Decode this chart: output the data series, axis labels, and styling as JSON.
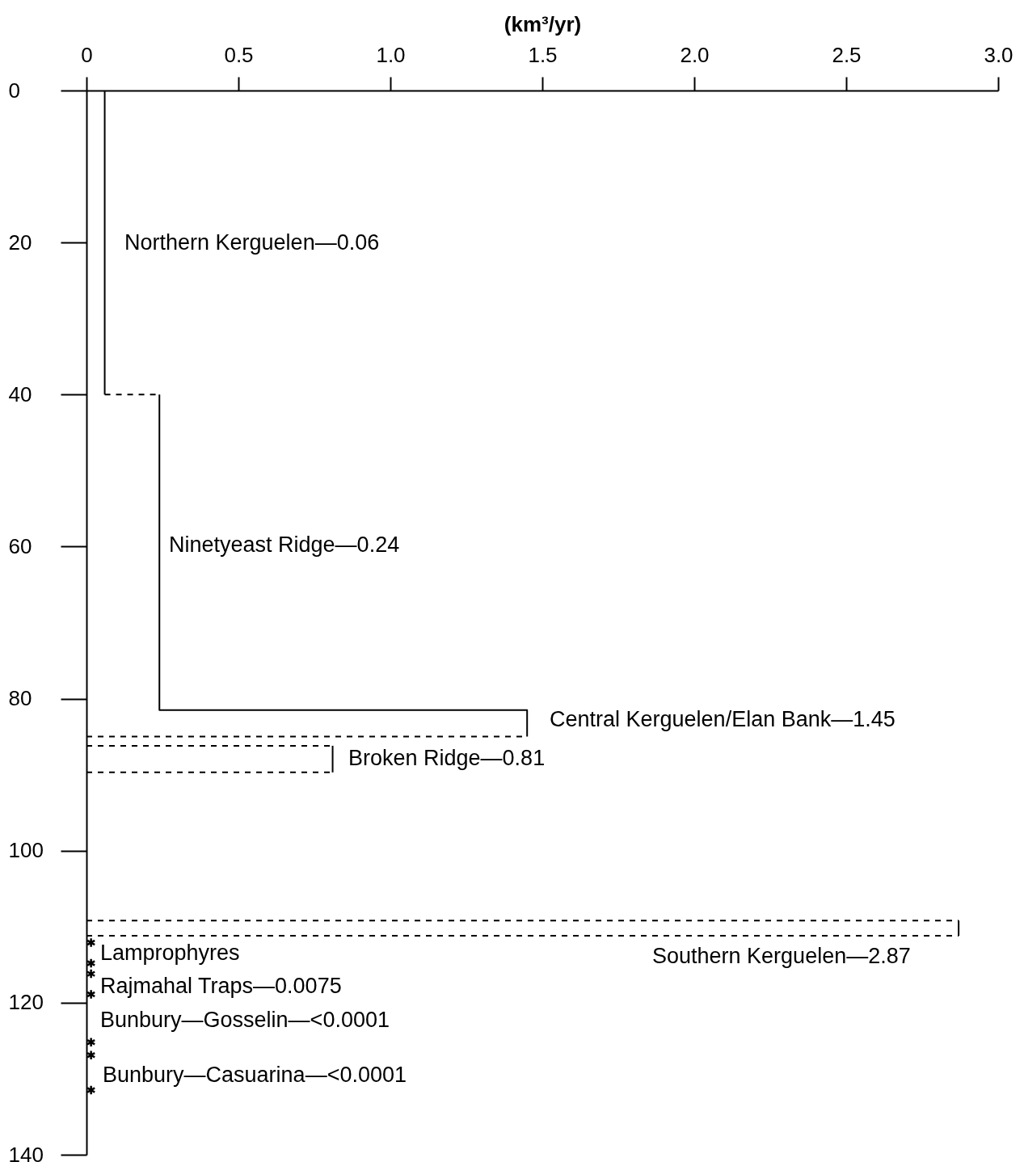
{
  "chart_data": {
    "type": "line",
    "xlabel": "(km³/yr)",
    "xlim": [
      0,
      3
    ],
    "xticks": [
      0,
      0.5,
      {
        "value": 1,
        "label": "1.0"
      },
      1.5,
      {
        "value": 2,
        "label": "2.0"
      },
      2.5,
      {
        "value": 3,
        "label": "3.0"
      }
    ],
    "ylim": [
      140,
      0
    ],
    "yticks": [
      0,
      20,
      40,
      60,
      80,
      100,
      120,
      140
    ],
    "series": [
      {
        "color": "#000000",
        "line_style": "solid",
        "x": [
          0.06,
          0.06
        ],
        "values": [
          0,
          40
        ]
      },
      {
        "color": "#000000",
        "line_style": "dashed",
        "x": [
          0.06,
          0.24
        ],
        "values": [
          40,
          40
        ]
      },
      {
        "color": "#000000",
        "line_style": "solid",
        "x": [
          0.24,
          0.24,
          1.45,
          1.45
        ],
        "values": [
          40,
          81.5,
          81.5,
          85
        ]
      },
      {
        "color": "#000000",
        "line_style": "dashed",
        "x": [
          0,
          1.45
        ],
        "values": [
          85,
          85
        ]
      },
      {
        "color": "#000000",
        "line_style": "dashed",
        "x": [
          0,
          0.81
        ],
        "values": [
          86.2,
          86.2
        ]
      },
      {
        "color": "#000000",
        "line_style": "solid",
        "x": [
          0.81,
          0.81
        ],
        "values": [
          86.2,
          89.7
        ]
      },
      {
        "color": "#000000",
        "line_style": "dashed",
        "x": [
          0,
          0.81
        ],
        "values": [
          89.7,
          89.7
        ]
      },
      {
        "color": "#000000",
        "line_style": "dashed",
        "x": [
          0,
          2.87
        ],
        "values": [
          109.2,
          109.2
        ]
      },
      {
        "color": "#000000",
        "line_style": "solid",
        "x": [
          2.87,
          2.87
        ],
        "values": [
          109.2,
          111.2
        ]
      },
      {
        "color": "#000000",
        "line_style": "dashed",
        "x": [
          0,
          2.87
        ],
        "values": [
          111.2,
          111.2
        ]
      },
      {
        "type": "scatter",
        "marker": "cross",
        "color": "#000000",
        "x": [
          0.015,
          0.015,
          0.015,
          0.015,
          0.015,
          0.015,
          0.015
        ],
        "values": [
          112.1,
          114.8,
          116.2,
          118.9,
          125.2,
          126.9,
          131.5
        ]
      }
    ],
    "annotations": [
      "Northern Kerguelen—0.06",
      "Ninetyeast Ridge—0.24",
      "Central Kerguelen/Elan Bank—1.45",
      "Broken Ridge—0.81",
      "Southern Kerguelen—2.87",
      "Lamprophyres",
      "Rajmahal Traps—0.0075",
      "Bunbury—Gosselin—<0.0001",
      "Bunbury—Casuarina—<0.0001"
    ]
  }
}
